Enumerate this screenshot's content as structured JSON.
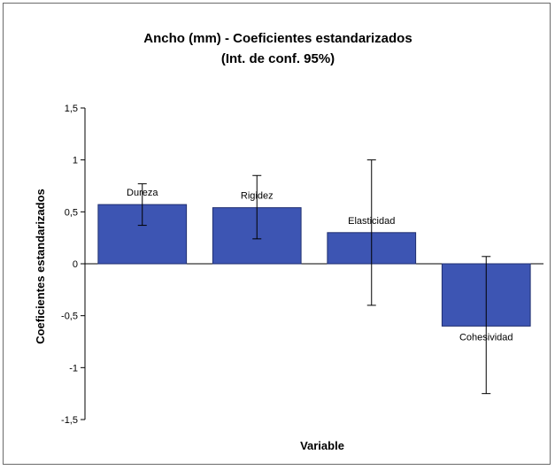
{
  "chart_data": {
    "type": "bar",
    "title": "Ancho (mm) - Coeficientes estandarizados",
    "subtitle": "(Int. de conf. 95%)",
    "xlabel": "Variable",
    "ylabel": "Coeficientes estandarizados",
    "ylim": [
      -1.5,
      1.5
    ],
    "yticks": [
      1.5,
      1,
      0.5,
      0,
      -0.5,
      -1,
      -1.5
    ],
    "ytick_labels": [
      "1,5",
      "1",
      "0,5",
      "0",
      "-0,5",
      "-1",
      "-1,5"
    ],
    "categories": [
      "Dureza",
      "Rigidez",
      "Elasticidad",
      "Cohesividad"
    ],
    "values": [
      0.57,
      0.54,
      0.3,
      -0.6
    ],
    "error_low": [
      0.37,
      0.24,
      -0.4,
      -1.25
    ],
    "error_high": [
      0.77,
      0.85,
      1.0,
      0.07
    ],
    "grid": false,
    "legend": "none",
    "bar_color": "#3d55b3"
  }
}
